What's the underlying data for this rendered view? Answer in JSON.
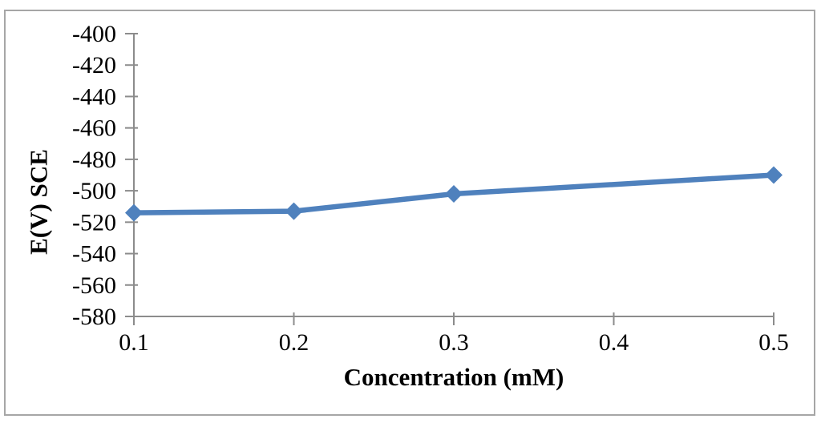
{
  "figure": {
    "background_color": "#ffffff",
    "border_color": "#a6a6a6"
  },
  "chart_data": {
    "type": "line",
    "title": "",
    "xlabel": "Concentration (mM)",
    "ylabel": "E(V) SCE",
    "x_tick_labels": [
      "0.1",
      "0.2",
      "0.3",
      "0.4",
      "0.5"
    ],
    "y_tick_labels": [
      "-400",
      "-420",
      "-440",
      "-460",
      "-480",
      "-500",
      "-520",
      "-540",
      "-560",
      "-580"
    ],
    "xlim": [
      0.1,
      0.5
    ],
    "ylim": [
      -580,
      -400
    ],
    "grid": "off",
    "legend": "none",
    "axis_color": "#8c8c8c",
    "tick_color": "#8c8c8c",
    "label_color": "#000000",
    "series": [
      {
        "marker": "diamond",
        "color": "#4f81bd",
        "points": [
          {
            "x": 0.1,
            "y": -514
          },
          {
            "x": 0.2,
            "y": -513
          },
          {
            "x": 0.3,
            "y": -502
          },
          {
            "x": 0.5,
            "y": -490
          }
        ]
      }
    ]
  }
}
